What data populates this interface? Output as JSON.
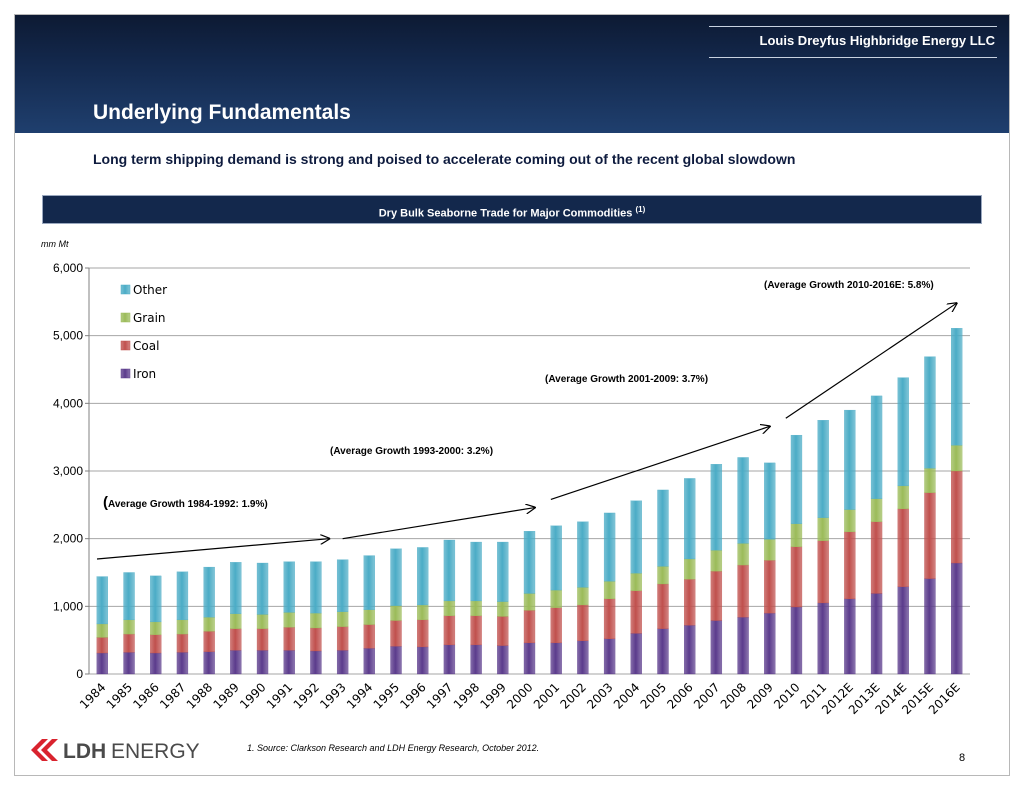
{
  "header": {
    "company": "Louis Dreyfus Highbridge Energy LLC",
    "title": "Underlying Fundamentals",
    "subtitle": "Long term shipping demand is strong and poised to accelerate coming out of the recent global slowdown"
  },
  "chart_banner": {
    "title": "Dry Bulk Seaborne Trade for Major Commodities",
    "note": "(1)"
  },
  "chart_data": {
    "type": "bar",
    "stacked": true,
    "unit_label": "mm Mt",
    "ylim": [
      0,
      6000
    ],
    "yticks": [
      "0",
      "1,000",
      "2,000",
      "3,000",
      "4,000",
      "5,000",
      "6,000"
    ],
    "grid": true,
    "legend_position": "top-left",
    "categories": [
      "1984",
      "1985",
      "1986",
      "1987",
      "1988",
      "1989",
      "1990",
      "1991",
      "1992",
      "1993",
      "1994",
      "1995",
      "1996",
      "1997",
      "1998",
      "1999",
      "2000",
      "2001",
      "2002",
      "2003",
      "2004",
      "2005",
      "2006",
      "2007",
      "2008",
      "2009",
      "2010",
      "2011",
      "2012E",
      "2013E",
      "2014E",
      "2015E",
      "2016E"
    ],
    "series": [
      {
        "name": "Iron",
        "color": "#5b3b8c",
        "values": [
          310,
          320,
          310,
          320,
          330,
          350,
          350,
          350,
          340,
          350,
          380,
          410,
          400,
          430,
          430,
          420,
          460,
          460,
          490,
          520,
          600,
          670,
          720,
          790,
          840,
          900,
          990,
          1050,
          1110,
          1190,
          1290,
          1410,
          1640
        ]
      },
      {
        "name": "Coal",
        "color": "#c0504d",
        "values": [
          230,
          270,
          270,
          270,
          300,
          320,
          320,
          340,
          340,
          350,
          350,
          380,
          400,
          430,
          430,
          430,
          480,
          520,
          530,
          590,
          630,
          660,
          680,
          730,
          770,
          780,
          890,
          920,
          990,
          1060,
          1150,
          1270,
          1360
        ]
      },
      {
        "name": "Grain",
        "color": "#9bbb59",
        "values": [
          200,
          210,
          190,
          210,
          210,
          220,
          210,
          220,
          220,
          220,
          220,
          220,
          220,
          220,
          220,
          220,
          250,
          260,
          260,
          260,
          260,
          260,
          300,
          310,
          320,
          310,
          340,
          340,
          330,
          340,
          340,
          360,
          380
        ]
      },
      {
        "name": "Other",
        "color": "#4bacc6",
        "values": [
          700,
          700,
          680,
          710,
          740,
          760,
          760,
          750,
          760,
          770,
          800,
          840,
          850,
          900,
          870,
          880,
          920,
          950,
          970,
          1010,
          1070,
          1130,
          1190,
          1270,
          1270,
          1130,
          1310,
          1440,
          1470,
          1520,
          1600,
          1650,
          1730
        ]
      }
    ],
    "annotations": [
      {
        "text": "Average Growth 1984-1992: 1.9%)",
        "open_paren": "("
      },
      {
        "text": "(Average Growth 1993-2000: 3.2%)"
      },
      {
        "text": "(Average Growth 2001-2009: 3.7%)"
      },
      {
        "text": "(Average Growth 2010-2016E: 5.8%)"
      }
    ],
    "arrows": [
      {
        "from": [
          1983.8,
          1700
        ],
        "to": [
          1992.5,
          2000
        ]
      },
      {
        "from": [
          1993,
          2000
        ],
        "to": [
          2000.2,
          2460
        ]
      },
      {
        "from": [
          2000.8,
          2580
        ],
        "to": [
          2009,
          3660
        ]
      },
      {
        "from": [
          2009.6,
          3780
        ],
        "to": [
          2016.0,
          5480
        ]
      }
    ]
  },
  "footer": {
    "footnote": "1.    Source: Clarkson Research and LDH Energy Research, October 2012.",
    "page": "8",
    "logo_text_bold": "LDH",
    "logo_text": "ENERGY"
  }
}
